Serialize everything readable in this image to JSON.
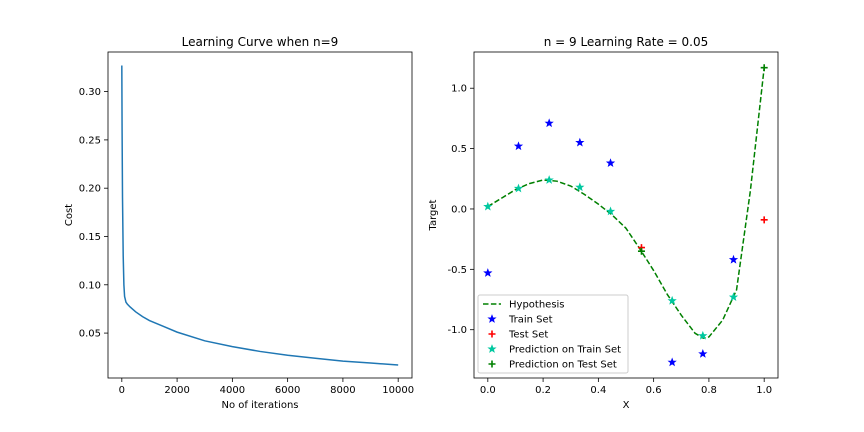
{
  "chart_data": [
    {
      "type": "line",
      "title": "Learning Curve when n=9",
      "xlabel": "No of iterations",
      "ylabel": "Cost",
      "xlim": [
        -500,
        10500
      ],
      "ylim": [
        0.0035,
        0.341
      ],
      "xticks": [
        0,
        2000,
        4000,
        6000,
        8000,
        10000
      ],
      "yticks": [
        0.05,
        0.1,
        0.15,
        0.2,
        0.25,
        0.3
      ],
      "series": [
        {
          "color": "#1f77b4",
          "x": [
            0,
            10,
            25,
            50,
            75,
            100,
            150,
            200,
            300,
            500,
            750,
            1000,
            1500,
            2000,
            3000,
            4000,
            5000,
            6000,
            7000,
            8000,
            9000,
            10000
          ],
          "y": [
            0.327,
            0.26,
            0.19,
            0.13,
            0.1,
            0.088,
            0.082,
            0.08,
            0.077,
            0.072,
            0.067,
            0.063,
            0.057,
            0.051,
            0.042,
            0.036,
            0.031,
            0.027,
            0.024,
            0.021,
            0.019,
            0.017
          ]
        }
      ]
    },
    {
      "type": "line",
      "title": "n = 9    Learning Rate = 0.05",
      "xlabel": "X",
      "ylabel": "Target",
      "xlim": [
        -0.05,
        1.05
      ],
      "ylim": [
        -1.4,
        1.3
      ],
      "xticks": [
        0.0,
        0.2,
        0.4,
        0.6,
        0.8,
        1.0
      ],
      "yticks": [
        -1.0,
        -0.5,
        0.0,
        0.5,
        1.0
      ],
      "legend_position": "lower-left",
      "series": [
        {
          "name": "Hypothesis",
          "kind": "dashed-line",
          "color": "#008000",
          "x": [
            0.0,
            0.05,
            0.1,
            0.15,
            0.2,
            0.25,
            0.3,
            0.35,
            0.4,
            0.45,
            0.5,
            0.55,
            0.6,
            0.65,
            0.7,
            0.75,
            0.78,
            0.8,
            0.85,
            0.9,
            0.95,
            1.0
          ],
          "y": [
            0.02,
            0.09,
            0.16,
            0.21,
            0.24,
            0.23,
            0.19,
            0.12,
            0.04,
            -0.05,
            -0.16,
            -0.33,
            -0.51,
            -0.71,
            -0.88,
            -1.03,
            -1.07,
            -1.06,
            -0.92,
            -0.67,
            0.15,
            1.17
          ]
        },
        {
          "name": "Train Set",
          "kind": "star",
          "color": "#0000ff",
          "x": [
            0.0,
            0.111,
            0.222,
            0.333,
            0.444,
            0.667,
            0.778,
            0.889
          ],
          "y": [
            -0.53,
            0.52,
            0.71,
            0.55,
            0.38,
            -1.27,
            -1.2,
            -0.42
          ]
        },
        {
          "name": "Test Set",
          "kind": "plus",
          "color": "#ff0000",
          "x": [
            0.556,
            1.0
          ],
          "y": [
            -0.32,
            -0.09
          ]
        },
        {
          "name": "Prediction on Train Set",
          "kind": "star",
          "color": "#00c8a0",
          "x": [
            0.0,
            0.111,
            0.222,
            0.333,
            0.444,
            0.667,
            0.778,
            0.889
          ],
          "y": [
            0.02,
            0.17,
            0.24,
            0.18,
            -0.02,
            -0.76,
            -1.05,
            -0.73
          ]
        },
        {
          "name": "Prediction on Test Set",
          "kind": "plus",
          "color": "#008000",
          "x": [
            0.556,
            1.0
          ],
          "y": [
            -0.35,
            1.17
          ]
        }
      ]
    }
  ]
}
